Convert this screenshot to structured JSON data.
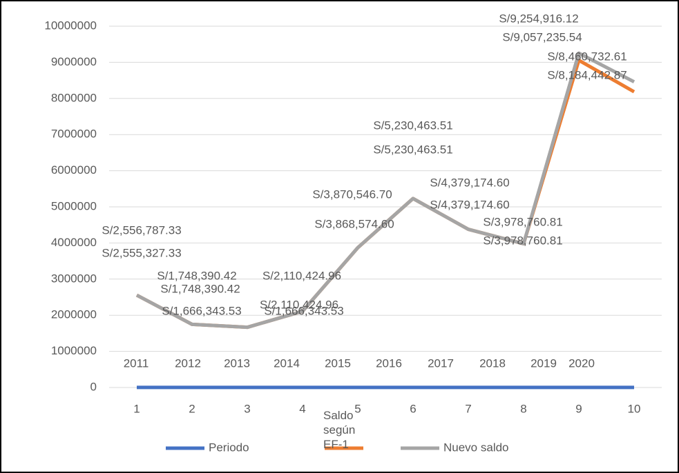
{
  "chart_data": {
    "type": "line",
    "categories": [
      1,
      2,
      3,
      4,
      5,
      6,
      7,
      8,
      9,
      10
    ],
    "series": [
      {
        "name": "Periodo",
        "color": "#4472c4",
        "values": [
          2011,
          2012,
          2013,
          2014,
          2015,
          2016,
          2017,
          2018,
          2019,
          2020
        ]
      },
      {
        "name": "Saldo según EF-1",
        "color": "#ed7d31",
        "values": [
          2555327.33,
          1748390.42,
          1666343.53,
          2110424.96,
          3868574.6,
          5230463.51,
          4379174.6,
          3978760.81,
          9057235.54,
          8184442.87
        ],
        "value_labels": [
          "S/2,555,327.33",
          "S/1,748,390.42",
          "S/1,666,343.53",
          "S/2,110,424.96",
          "S/3,868,574.60",
          "S/5,230,463.51",
          "S/4,379,174.60",
          "S/3,978,760.81",
          "S/9,057,235.54",
          "S/8,184,442.87"
        ]
      },
      {
        "name": "Nuevo saldo",
        "color": "#a5a5a5",
        "values": [
          2556787.33,
          1748390.42,
          1666343.53,
          2110424.96,
          3870546.7,
          5230463.51,
          4379174.6,
          3978760.81,
          9254916.12,
          8460732.61
        ],
        "value_labels": [
          "S/2,556,787.33",
          "S/1,748,390.42",
          "S/1,666,343.53",
          "S/2,110,424.96",
          "S/3,870,546.70",
          "S/5,230,463.51",
          "S/4,379,174.60",
          "S/3,978,760.81",
          "S/9,254,916.12",
          "S/8,460,732.61"
        ]
      }
    ],
    "ylim": [
      0,
      10000000
    ],
    "yticks": [
      0,
      1000000,
      2000000,
      3000000,
      4000000,
      5000000,
      6000000,
      7000000,
      8000000,
      9000000,
      10000000
    ],
    "grid": true,
    "legend": "bottom"
  }
}
